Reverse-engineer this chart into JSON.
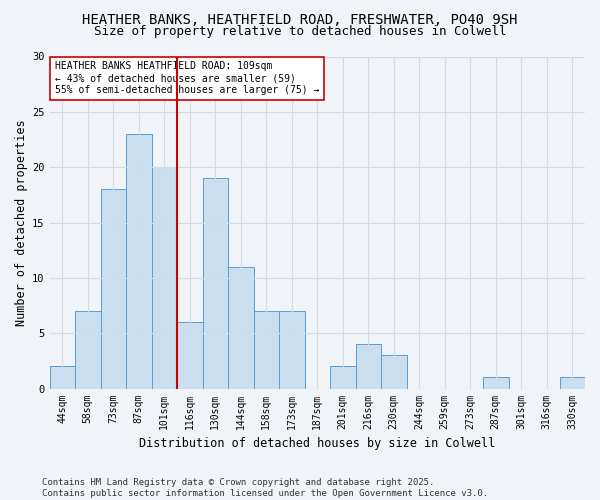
{
  "title1": "HEATHER BANKS, HEATHFIELD ROAD, FRESHWATER, PO40 9SH",
  "title2": "Size of property relative to detached houses in Colwell",
  "xlabel": "Distribution of detached houses by size in Colwell",
  "ylabel": "Number of detached properties",
  "categories": [
    "44sqm",
    "58sqm",
    "73sqm",
    "87sqm",
    "101sqm",
    "116sqm",
    "130sqm",
    "144sqm",
    "158sqm",
    "173sqm",
    "187sqm",
    "201sqm",
    "216sqm",
    "230sqm",
    "244sqm",
    "259sqm",
    "273sqm",
    "287sqm",
    "301sqm",
    "316sqm",
    "330sqm"
  ],
  "values": [
    2,
    7,
    18,
    23,
    20,
    6,
    19,
    11,
    7,
    7,
    0,
    2,
    4,
    3,
    0,
    0,
    0,
    1,
    0,
    0,
    1
  ],
  "bar_color": "#c9dff0",
  "bar_edge_color": "#5b9bd5",
  "vline_x": 4.5,
  "vline_color": "#cc0000",
  "annotation_text": "HEATHER BANKS HEATHFIELD ROAD: 109sqm\n← 43% of detached houses are smaller (59)\n55% of semi-detached houses are larger (75) →",
  "annotation_box_color": "#ffffff",
  "annotation_box_edge": "#cc0000",
  "ylim": [
    0,
    30
  ],
  "yticks": [
    0,
    5,
    10,
    15,
    20,
    25,
    30
  ],
  "footer": "Contains HM Land Registry data © Crown copyright and database right 2025.\nContains public sector information licensed under the Open Government Licence v3.0.",
  "fig_color": "#f0f4f8",
  "plot_bg_color": "#f0f4f8",
  "title_fontsize": 10,
  "subtitle_fontsize": 9,
  "tick_fontsize": 7,
  "label_fontsize": 8.5,
  "annot_fontsize": 7,
  "footer_fontsize": 6.5,
  "grid_color": "#d0dce8"
}
